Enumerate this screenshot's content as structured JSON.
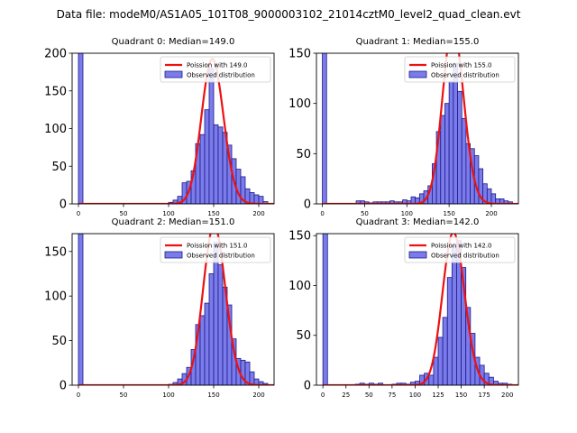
{
  "figure_title": "Data file: modeM0/AS1A05_101T08_9000003102_21014cztM0_level2_quad_clean.evt",
  "colors": {
    "bar_fill": "#7b7bea",
    "bar_edge": "#1a1a8c",
    "poisson_line": "#ee1111",
    "axes": "#000000"
  },
  "chart_data": [
    {
      "type": "bar",
      "title": "Quadrant 0: Median=149.0",
      "median": 149.0,
      "bin_width": 5,
      "xlim": [
        -7,
        217
      ],
      "ylim": [
        0,
        200
      ],
      "xticks": [
        0,
        50,
        100,
        150,
        200
      ],
      "yticks": [
        0,
        50,
        100,
        150,
        200
      ],
      "legend": {
        "position": "top-right",
        "entries": [
          "Poission with 149.0",
          "Observed distribution"
        ]
      },
      "bins": [
        [
          0,
          200
        ],
        [
          100,
          2
        ],
        [
          105,
          5
        ],
        [
          110,
          10
        ],
        [
          115,
          28
        ],
        [
          120,
          30
        ],
        [
          125,
          44
        ],
        [
          130,
          80
        ],
        [
          135,
          92
        ],
        [
          140,
          125
        ],
        [
          145,
          180
        ],
        [
          150,
          105
        ],
        [
          155,
          102
        ],
        [
          160,
          95
        ],
        [
          165,
          78
        ],
        [
          170,
          60
        ],
        [
          175,
          46
        ],
        [
          180,
          36
        ],
        [
          185,
          20
        ],
        [
          190,
          15
        ],
        [
          195,
          12
        ],
        [
          200,
          10
        ],
        [
          205,
          3
        ]
      ]
    },
    {
      "type": "bar",
      "title": "Quadrant 1: Median=155.0",
      "median": 155.0,
      "bin_width": 5,
      "xlim": [
        -7,
        232
      ],
      "ylim": [
        0,
        150
      ],
      "xticks": [
        0,
        50,
        100,
        150,
        200
      ],
      "yticks": [
        0,
        50,
        100,
        150
      ],
      "legend": {
        "position": "top-right",
        "entries": [
          "Poission with 155.0",
          "Observed distribution"
        ]
      },
      "bins": [
        [
          0,
          150
        ],
        [
          40,
          3
        ],
        [
          45,
          3
        ],
        [
          50,
          2
        ],
        [
          55,
          1
        ],
        [
          60,
          2
        ],
        [
          65,
          2
        ],
        [
          70,
          2
        ],
        [
          75,
          2
        ],
        [
          80,
          3
        ],
        [
          85,
          2
        ],
        [
          90,
          2
        ],
        [
          95,
          4
        ],
        [
          100,
          3
        ],
        [
          105,
          7
        ],
        [
          110,
          6
        ],
        [
          115,
          10
        ],
        [
          120,
          13
        ],
        [
          125,
          18
        ],
        [
          130,
          40
        ],
        [
          135,
          72
        ],
        [
          140,
          88
        ],
        [
          145,
          100
        ],
        [
          150,
          122
        ],
        [
          155,
          140
        ],
        [
          160,
          112
        ],
        [
          165,
          85
        ],
        [
          170,
          60
        ],
        [
          175,
          55
        ],
        [
          180,
          48
        ],
        [
          185,
          35
        ],
        [
          190,
          20
        ],
        [
          195,
          15
        ],
        [
          200,
          10
        ],
        [
          205,
          5
        ],
        [
          210,
          5
        ],
        [
          215,
          3
        ],
        [
          220,
          2
        ]
      ]
    },
    {
      "type": "bar",
      "title": "Quadrant 2: Median=151.0",
      "median": 151.0,
      "bin_width": 5,
      "xlim": [
        -7,
        217
      ],
      "ylim": [
        0,
        170
      ],
      "xticks": [
        0,
        50,
        100,
        150,
        200
      ],
      "yticks": [
        0,
        50,
        100,
        150
      ],
      "legend": {
        "position": "top-right",
        "entries": [
          "Poission with 151.0",
          "Observed distribution"
        ]
      },
      "bins": [
        [
          0,
          170
        ],
        [
          100,
          1
        ],
        [
          105,
          3
        ],
        [
          110,
          7
        ],
        [
          115,
          13
        ],
        [
          120,
          20
        ],
        [
          125,
          40
        ],
        [
          130,
          68
        ],
        [
          135,
          78
        ],
        [
          140,
          92
        ],
        [
          145,
          125
        ],
        [
          150,
          160
        ],
        [
          155,
          135
        ],
        [
          160,
          110
        ],
        [
          165,
          90
        ],
        [
          170,
          52
        ],
        [
          175,
          30
        ],
        [
          180,
          28
        ],
        [
          185,
          26
        ],
        [
          190,
          15
        ],
        [
          195,
          7
        ],
        [
          200,
          4
        ],
        [
          205,
          2
        ]
      ]
    },
    {
      "type": "bar",
      "title": "Quadrant 3: Median=142.0",
      "median": 142.0,
      "bin_width": 5,
      "xlim": [
        -7,
        212
      ],
      "ylim": [
        0,
        152
      ],
      "xticks": [
        0,
        25,
        50,
        75,
        100,
        125,
        150,
        175,
        200
      ],
      "yticks": [
        0,
        50,
        100,
        150
      ],
      "legend": {
        "position": "top-right",
        "entries": [
          "Poission with 142.0",
          "Observed distribution"
        ]
      },
      "bins": [
        [
          0,
          152
        ],
        [
          35,
          1
        ],
        [
          40,
          2
        ],
        [
          45,
          1
        ],
        [
          50,
          2
        ],
        [
          55,
          1
        ],
        [
          60,
          2
        ],
        [
          75,
          1
        ],
        [
          80,
          2
        ],
        [
          85,
          2
        ],
        [
          90,
          1
        ],
        [
          95,
          3
        ],
        [
          100,
          4
        ],
        [
          105,
          10
        ],
        [
          110,
          12
        ],
        [
          115,
          10
        ],
        [
          120,
          28
        ],
        [
          125,
          48
        ],
        [
          130,
          68
        ],
        [
          135,
          108
        ],
        [
          140,
          140
        ],
        [
          145,
          145
        ],
        [
          150,
          118
        ],
        [
          155,
          78
        ],
        [
          160,
          52
        ],
        [
          165,
          28
        ],
        [
          170,
          20
        ],
        [
          175,
          12
        ],
        [
          180,
          8
        ],
        [
          185,
          4
        ],
        [
          190,
          2
        ],
        [
          195,
          2
        ],
        [
          200,
          1
        ]
      ]
    }
  ]
}
